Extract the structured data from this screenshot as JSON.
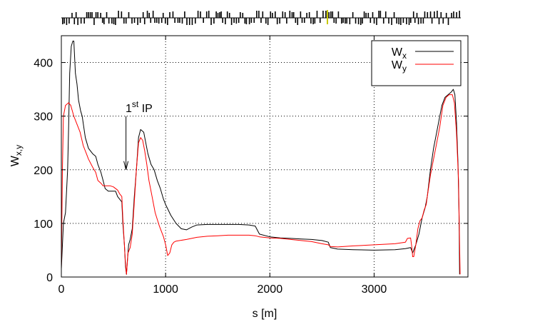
{
  "chart_data": {
    "type": "line",
    "xlabel": "s [m]",
    "ylabel": {
      "base": "W",
      "sub": "x,y"
    },
    "xlim": [
      0,
      3900
    ],
    "ylim": [
      0,
      450
    ],
    "x_ticks": [
      "0",
      "1000",
      "2000",
      "3000"
    ],
    "y_ticks": [
      "0",
      "100",
      "200",
      "300",
      "400"
    ],
    "grid": "dotted",
    "legend_position": "top-right",
    "annotation": {
      "text_base": "1",
      "text_sup": "st",
      "text_rest": " IP",
      "arrow_x": 620,
      "arrow_from_y": 300,
      "arrow_to_y": 200
    },
    "series": [
      {
        "name": "Wx",
        "name_base": "W",
        "name_sub": "x",
        "color": "#000000",
        "points": [
          [
            0,
            15
          ],
          [
            20,
            100
          ],
          [
            40,
            120
          ],
          [
            60,
            200
          ],
          [
            70,
            280
          ],
          [
            80,
            380
          ],
          [
            95,
            430
          ],
          [
            110,
            440
          ],
          [
            120,
            440
          ],
          [
            135,
            380
          ],
          [
            150,
            360
          ],
          [
            165,
            330
          ],
          [
            185,
            310
          ],
          [
            200,
            300
          ],
          [
            230,
            260
          ],
          [
            260,
            240
          ],
          [
            300,
            230
          ],
          [
            330,
            225
          ],
          [
            350,
            210
          ],
          [
            380,
            195
          ],
          [
            400,
            180
          ],
          [
            420,
            165
          ],
          [
            450,
            160
          ],
          [
            480,
            160
          ],
          [
            520,
            160
          ],
          [
            540,
            150
          ],
          [
            560,
            145
          ],
          [
            580,
            140
          ],
          [
            590,
            100
          ],
          [
            605,
            60
          ],
          [
            615,
            20
          ],
          [
            625,
            5
          ],
          [
            635,
            35
          ],
          [
            645,
            60
          ],
          [
            660,
            70
          ],
          [
            680,
            90
          ],
          [
            700,
            150
          ],
          [
            720,
            200
          ],
          [
            740,
            260
          ],
          [
            760,
            275
          ],
          [
            790,
            270
          ],
          [
            810,
            250
          ],
          [
            830,
            230
          ],
          [
            860,
            210
          ],
          [
            890,
            200
          ],
          [
            920,
            180
          ],
          [
            950,
            165
          ],
          [
            980,
            145
          ],
          [
            1000,
            135
          ],
          [
            1050,
            115
          ],
          [
            1100,
            100
          ],
          [
            1150,
            90
          ],
          [
            1200,
            88
          ],
          [
            1250,
            93
          ],
          [
            1300,
            97
          ],
          [
            1400,
            98
          ],
          [
            1500,
            98
          ],
          [
            1600,
            98
          ],
          [
            1700,
            98
          ],
          [
            1800,
            97
          ],
          [
            1860,
            95
          ],
          [
            1900,
            80
          ],
          [
            2000,
            75
          ],
          [
            2100,
            73
          ],
          [
            2200,
            72
          ],
          [
            2300,
            71
          ],
          [
            2400,
            70
          ],
          [
            2500,
            68
          ],
          [
            2560,
            65
          ],
          [
            2580,
            55
          ],
          [
            2650,
            52
          ],
          [
            2800,
            51
          ],
          [
            3000,
            50
          ],
          [
            3200,
            51
          ],
          [
            3300,
            53
          ],
          [
            3350,
            55
          ],
          [
            3370,
            45
          ],
          [
            3400,
            60
          ],
          [
            3430,
            80
          ],
          [
            3460,
            110
          ],
          [
            3490,
            130
          ],
          [
            3510,
            150
          ],
          [
            3540,
            200
          ],
          [
            3570,
            240
          ],
          [
            3600,
            270
          ],
          [
            3630,
            300
          ],
          [
            3650,
            320
          ],
          [
            3680,
            335
          ],
          [
            3710,
            340
          ],
          [
            3740,
            345
          ],
          [
            3760,
            350
          ],
          [
            3775,
            340
          ],
          [
            3790,
            290
          ],
          [
            3805,
            210
          ],
          [
            3815,
            110
          ],
          [
            3820,
            5
          ]
        ]
      },
      {
        "name": "Wy",
        "name_base": "W",
        "name_sub": "y",
        "color": "#ff0000",
        "points": [
          [
            0,
            15
          ],
          [
            10,
            200
          ],
          [
            20,
            300
          ],
          [
            40,
            320
          ],
          [
            70,
            325
          ],
          [
            90,
            320
          ],
          [
            120,
            300
          ],
          [
            150,
            285
          ],
          [
            180,
            270
          ],
          [
            210,
            245
          ],
          [
            240,
            230
          ],
          [
            260,
            220
          ],
          [
            300,
            205
          ],
          [
            330,
            195
          ],
          [
            350,
            180
          ],
          [
            380,
            175
          ],
          [
            400,
            170
          ],
          [
            430,
            170
          ],
          [
            470,
            170
          ],
          [
            500,
            168
          ],
          [
            540,
            162
          ],
          [
            560,
            155
          ],
          [
            580,
            150
          ],
          [
            590,
            110
          ],
          [
            605,
            60
          ],
          [
            615,
            25
          ],
          [
            625,
            5
          ],
          [
            640,
            45
          ],
          [
            660,
            55
          ],
          [
            680,
            80
          ],
          [
            700,
            140
          ],
          [
            720,
            200
          ],
          [
            740,
            250
          ],
          [
            760,
            260
          ],
          [
            780,
            255
          ],
          [
            800,
            235
          ],
          [
            820,
            210
          ],
          [
            840,
            180
          ],
          [
            870,
            150
          ],
          [
            900,
            120
          ],
          [
            940,
            95
          ],
          [
            980,
            75
          ],
          [
            1000,
            60
          ],
          [
            1020,
            40
          ],
          [
            1040,
            45
          ],
          [
            1060,
            60
          ],
          [
            1080,
            65
          ],
          [
            1100,
            67
          ],
          [
            1200,
            70
          ],
          [
            1300,
            74
          ],
          [
            1400,
            76
          ],
          [
            1500,
            77
          ],
          [
            1600,
            78
          ],
          [
            1700,
            78
          ],
          [
            1800,
            78
          ],
          [
            1860,
            77
          ],
          [
            1900,
            75
          ],
          [
            2000,
            73
          ],
          [
            2100,
            72
          ],
          [
            2200,
            70
          ],
          [
            2300,
            68
          ],
          [
            2400,
            66
          ],
          [
            2500,
            62
          ],
          [
            2560,
            60
          ],
          [
            2580,
            57
          ],
          [
            2650,
            56
          ],
          [
            2800,
            58
          ],
          [
            3000,
            60
          ],
          [
            3200,
            62
          ],
          [
            3300,
            65
          ],
          [
            3320,
            72
          ],
          [
            3350,
            73
          ],
          [
            3360,
            58
          ],
          [
            3370,
            38
          ],
          [
            3380,
            38
          ],
          [
            3400,
            60
          ],
          [
            3420,
            90
          ],
          [
            3440,
            105
          ],
          [
            3460,
            110
          ],
          [
            3480,
            125
          ],
          [
            3500,
            135
          ],
          [
            3510,
            150
          ],
          [
            3540,
            190
          ],
          [
            3570,
            220
          ],
          [
            3600,
            250
          ],
          [
            3630,
            280
          ],
          [
            3660,
            320
          ],
          [
            3690,
            335
          ],
          [
            3720,
            340
          ],
          [
            3750,
            340
          ],
          [
            3770,
            325
          ],
          [
            3790,
            270
          ],
          [
            3810,
            180
          ],
          [
            3820,
            60
          ],
          [
            3825,
            5
          ]
        ]
      }
    ]
  }
}
